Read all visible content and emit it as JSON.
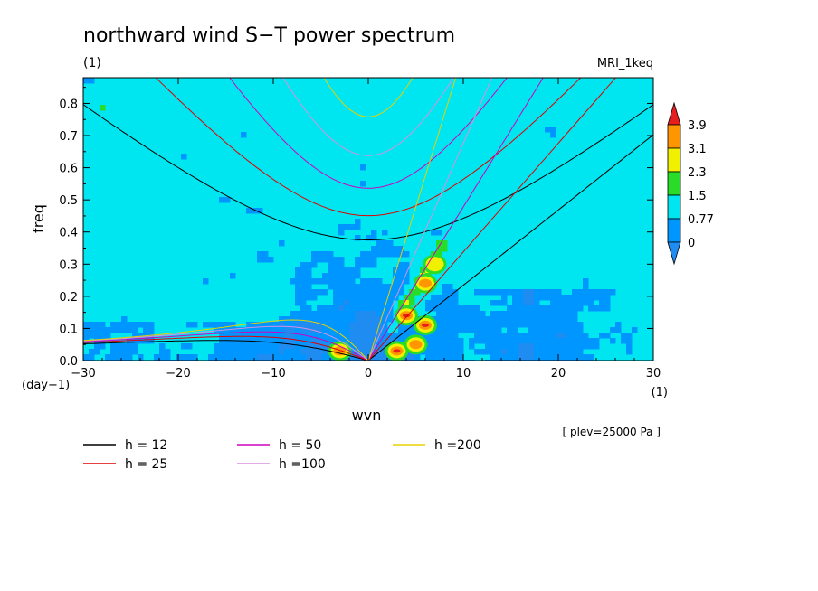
{
  "chart_data": {
    "type": "heatmap",
    "title": "northward wind S−T power spectrum",
    "units_label": "(1)",
    "model_label": "MRI_1keq",
    "xlabel": "wvn",
    "ylabel": "freq",
    "x_unit": "(1)",
    "y_unit": "(day−1)",
    "xlim": [
      -30,
      30
    ],
    "ylim": [
      0,
      0.88
    ],
    "x_ticks": [
      -30,
      -20,
      -10,
      0,
      10,
      20,
      30
    ],
    "y_ticks": [
      0.0,
      0.1,
      0.2,
      0.3,
      0.4,
      0.5,
      0.6,
      0.7,
      0.8
    ],
    "x_tick_labels": [
      "−30",
      "−20",
      "−10",
      "0",
      "10",
      "20",
      "30"
    ],
    "y_tick_labels": [
      "0.0",
      "0.1",
      "0.2",
      "0.3",
      "0.4",
      "0.5",
      "0.6",
      "0.7",
      "0.8"
    ],
    "colorbar": {
      "levels": [
        "0",
        "0.77",
        "1.5",
        "2.3",
        "3.1",
        "3.9"
      ],
      "colors": [
        "#1e8cf0",
        "#0096ff",
        "#00e6f0",
        "#28dc28",
        "#f0f000",
        "#ff9600",
        "#e61e1e"
      ]
    },
    "annotation": "[ plev=25000 Pa ]",
    "dispersion_curves": [
      {
        "label": "h = 12",
        "h": 12,
        "color": "#000000"
      },
      {
        "label": "h = 25",
        "h": 25,
        "color": "#e00000"
      },
      {
        "label": "h = 50",
        "h": 50,
        "color": "#d000c0"
      },
      {
        "label": "h =100",
        "h": 100,
        "color": "#d890e0"
      },
      {
        "label": "h =200",
        "h": 200,
        "color": "#e8d000"
      }
    ],
    "hotspots": [
      {
        "k": -3,
        "f": 0.03,
        "level": 4
      },
      {
        "k": 3,
        "f": 0.03,
        "level": 5
      },
      {
        "k": 4,
        "f": 0.14,
        "level": 5
      },
      {
        "k": 6,
        "f": 0.11,
        "level": 5
      },
      {
        "k": 6,
        "f": 0.24,
        "level": 4
      },
      {
        "k": 5,
        "f": 0.05,
        "level": 4
      },
      {
        "k": 7,
        "f": 0.3,
        "level": 3
      }
    ]
  }
}
